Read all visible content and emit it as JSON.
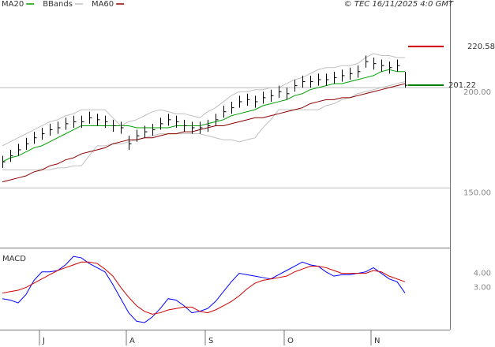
{
  "chart_data": [
    {
      "type": "hlc",
      "source": "© TEC 16/11/2025 4:0 GMT",
      "legend": "top-left",
      "ylim": [
        121,
        239
      ],
      "yticks": [
        {
          "value": 200,
          "label": "200.00"
        },
        {
          "value": 150,
          "label": "150.00"
        }
      ],
      "grid": true,
      "bars": {
        "color": "#000000",
        "high": [
          166,
          169,
          172,
          175,
          178,
          180,
          182,
          183,
          185,
          186,
          186,
          188,
          187,
          186,
          184,
          183,
          176,
          179,
          181,
          182,
          185,
          187,
          186,
          184,
          183,
          183,
          184,
          187,
          191,
          193,
          196,
          197,
          196,
          198,
          199,
          201,
          200,
          204,
          206,
          206,
          207,
          207,
          208,
          209,
          210,
          211,
          216,
          215,
          214,
          213,
          214,
          208
        ],
        "low": [
          160,
          163,
          166,
          169,
          172,
          174,
          176,
          177,
          179,
          180,
          180,
          182,
          181,
          180,
          178,
          177,
          169,
          173,
          175,
          176,
          179,
          181,
          180,
          178,
          177,
          177,
          178,
          181,
          185,
          187,
          190,
          191,
          190,
          192,
          193,
          195,
          194,
          198,
          200,
          200,
          201,
          201,
          202,
          203,
          204,
          205,
          210,
          209,
          208,
          207,
          208,
          200
        ],
        "close": [
          163,
          166,
          169,
          172,
          175,
          177,
          179,
          180,
          182,
          183,
          183,
          185,
          184,
          183,
          181,
          180,
          172,
          176,
          178,
          179,
          182,
          184,
          183,
          181,
          180,
          180,
          181,
          184,
          188,
          190,
          193,
          194,
          193,
          195,
          196,
          198,
          197,
          201,
          203,
          203,
          204,
          204,
          205,
          206,
          207,
          208,
          213,
          212,
          211,
          210,
          211,
          201.22
        ]
      },
      "series": [
        {
          "name": "MA20",
          "color": "#00a000",
          "values": [
            163,
            165,
            166,
            168,
            170,
            171,
            173,
            175,
            177,
            179,
            181,
            181,
            181,
            181,
            181,
            181,
            181,
            180,
            180,
            180,
            180,
            180,
            181,
            181,
            181,
            181,
            182,
            183,
            184,
            186,
            187,
            188,
            189,
            191,
            192,
            193,
            194,
            196,
            197,
            199,
            200,
            201,
            202,
            202,
            203,
            204,
            205,
            206,
            208,
            209,
            208,
            208
          ]
        },
        {
          "name": "BBands",
          "color": "#c0c0c0",
          "upper": [
            171,
            173,
            175,
            177,
            179,
            181,
            183,
            184,
            186,
            187,
            189,
            189,
            189,
            189,
            185,
            181,
            183,
            184,
            186,
            188,
            189,
            188,
            187,
            187,
            186,
            185,
            188,
            190,
            193,
            196,
            198,
            198,
            199,
            199,
            200,
            200,
            202,
            204,
            205,
            207,
            209,
            210,
            210,
            211,
            211,
            212,
            215,
            217,
            216,
            216,
            215,
            215
          ],
          "lower": [
            159,
            159,
            159,
            159,
            159,
            159,
            159,
            160,
            160,
            161,
            161,
            166,
            171,
            171,
            172,
            172,
            173,
            174,
            175,
            176,
            177,
            177,
            177,
            177,
            177,
            177,
            176,
            175,
            174,
            174,
            173,
            174,
            175,
            180,
            184,
            189,
            189,
            189,
            189,
            189,
            189,
            191,
            192,
            194,
            195,
            197,
            198,
            199,
            200,
            201,
            202,
            203
          ]
        },
        {
          "name": "MA60",
          "color": "#8b0000",
          "values": [
            153,
            154,
            155,
            156,
            158,
            159,
            161,
            162,
            164,
            165,
            167,
            168,
            169,
            170,
            172,
            173,
            174,
            174,
            175,
            175,
            176,
            177,
            177,
            178,
            178,
            179,
            180,
            181,
            181,
            182,
            183,
            184,
            185,
            185,
            186,
            187,
            188,
            189,
            190,
            192,
            193,
            194,
            194,
            195,
            195,
            196,
            197,
            198,
            199,
            200,
            201,
            202
          ]
        }
      ],
      "levels": [
        {
          "value": 220.58,
          "label": "220.58",
          "color": "#d00000"
        },
        {
          "value": 201.22,
          "label": "201.22",
          "color": "#008000"
        }
      ]
    },
    {
      "type": "line",
      "title": "MACD",
      "ylim": [
        0,
        5.6
      ],
      "yticks": [
        {
          "value": 4,
          "label": "4.00"
        },
        {
          "value": 3,
          "label": "3.00"
        }
      ],
      "categories": [
        null,
        null,
        null,
        null,
        null,
        "J",
        null,
        null,
        null,
        null,
        null,
        null,
        null,
        null,
        null,
        null,
        "A",
        null,
        null,
        null,
        null,
        null,
        null,
        null,
        null,
        null,
        "S",
        null,
        null,
        null,
        null,
        null,
        null,
        null,
        null,
        null,
        "O",
        null,
        null,
        null,
        null,
        null,
        null,
        null,
        null,
        null,
        null,
        "N",
        null,
        null,
        null,
        null
      ],
      "series": [
        {
          "color": "#0000ff",
          "values": [
            2.2,
            2.1,
            1.9,
            2.5,
            3.5,
            4.1,
            4.1,
            4.2,
            4.6,
            5.2,
            5.1,
            4.7,
            4.4,
            4.1,
            3.2,
            2.2,
            1.2,
            0.6,
            0.5,
            0.9,
            1.5,
            2.2,
            2.1,
            1.7,
            1.2,
            1.3,
            1.5,
            2.0,
            2.7,
            3.4,
            4.0,
            3.9,
            3.8,
            3.7,
            3.6,
            3.9,
            4.2,
            4.5,
            4.8,
            4.6,
            4.5,
            4.1,
            3.8,
            3.9,
            3.9,
            4.0,
            4.1,
            4.4,
            4.0,
            3.6,
            3.4,
            2.6
          ]
        },
        {
          "color": "#d00000",
          "values": [
            2.6,
            2.7,
            2.8,
            3.0,
            3.3,
            3.6,
            3.9,
            4.2,
            4.4,
            4.6,
            4.8,
            4.8,
            4.7,
            4.3,
            3.8,
            3.0,
            2.3,
            1.7,
            1.3,
            1.1,
            1.2,
            1.4,
            1.5,
            1.6,
            1.6,
            1.3,
            1.2,
            1.4,
            1.7,
            2.0,
            2.4,
            2.9,
            3.3,
            3.5,
            3.6,
            3.7,
            3.8,
            4.1,
            4.3,
            4.5,
            4.5,
            4.4,
            4.2,
            4.0,
            4.0,
            4.0,
            4.0,
            4.2,
            4.1,
            3.8,
            3.6,
            3.4
          ]
        }
      ]
    }
  ]
}
